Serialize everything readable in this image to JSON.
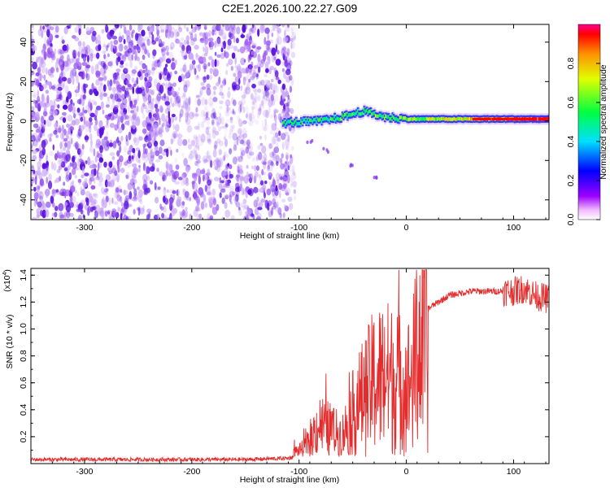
{
  "title": "C2E1.2026.100.22.27.G09",
  "chart_data": [
    {
      "type": "heatmap",
      "xlabel": "Height of straight line (km)",
      "ylabel": "Frequency (Hz)",
      "xlim": [
        -350,
        133
      ],
      "ylim": [
        -50,
        49
      ],
      "xticks": [
        -300,
        -200,
        -100,
        0,
        100
      ],
      "yticks": [
        -40,
        -20,
        0,
        20,
        40
      ],
      "colorbar": {
        "label": "Normalized spectral amplitude",
        "range": [
          0,
          1
        ],
        "ticks": [
          0.0,
          0.2,
          0.4,
          0.6,
          0.8
        ],
        "colormap": "rainbow (magenta-blue-cyan-green-yellow-red)"
      },
      "features": [
        {
          "description": "broadband noise region",
          "x_range": [
            -350,
            -107
          ],
          "freq_range": [
            -50,
            49
          ],
          "amplitude": 0.15
        },
        {
          "description": "carrier line",
          "x_range": [
            -115,
            133
          ],
          "freq": [
            [
              -115,
              -1
            ],
            [
              -80,
              0
            ],
            [
              -60,
              2
            ],
            [
              -40,
              5
            ],
            [
              -20,
              2
            ],
            [
              0,
              1
            ],
            [
              50,
              1
            ],
            [
              100,
              1
            ],
            [
              133,
              1
            ]
          ],
          "amplitude_trend": [
            [
              -110,
              0.5
            ],
            [
              -60,
              0.55
            ],
            [
              0,
              0.6
            ],
            [
              60,
              0.75
            ],
            [
              133,
              0.95
            ]
          ]
        },
        {
          "description": "weak descending trace",
          "points": [
            [
              -90,
              -10
            ],
            [
              -75,
              -15
            ],
            [
              -50,
              -22
            ],
            [
              -30,
              -29
            ]
          ]
        }
      ],
      "grid": false
    },
    {
      "type": "line",
      "xlabel": "Height of straight line (km)",
      "ylabel": "SNR (10 * v/v)",
      "yscale_label": "(x10",
      "yscale_exp": "4",
      "xlim": [
        -350,
        133
      ],
      "ylim": [
        0,
        1.45
      ],
      "xticks": [
        -300,
        -200,
        -100,
        0,
        100
      ],
      "yticks": [
        0.2,
        0.4,
        0.6,
        0.8,
        1.0,
        1.2,
        1.4
      ],
      "color": "#e52b2b",
      "series": [
        {
          "x": [
            -350,
            -300,
            -250,
            -200,
            -150,
            -110,
            -100,
            -90,
            -85,
            -80,
            -70,
            -60,
            -50,
            -45,
            -40,
            -30,
            -20,
            -10,
            0,
            5,
            10,
            15,
            20,
            30,
            40,
            60,
            80,
            100,
            110,
            120,
            133
          ],
          "values": [
            0.03,
            0.03,
            0.03,
            0.03,
            0.03,
            0.04,
            0.06,
            0.12,
            0.25,
            0.3,
            0.25,
            0.2,
            0.4,
            0.5,
            0.55,
            0.7,
            0.75,
            0.7,
            0.65,
            0.7,
            0.95,
            1.1,
            1.15,
            1.2,
            1.25,
            1.28,
            1.28,
            1.28,
            1.3,
            1.25,
            1.22
          ]
        }
      ],
      "grid": false
    }
  ]
}
